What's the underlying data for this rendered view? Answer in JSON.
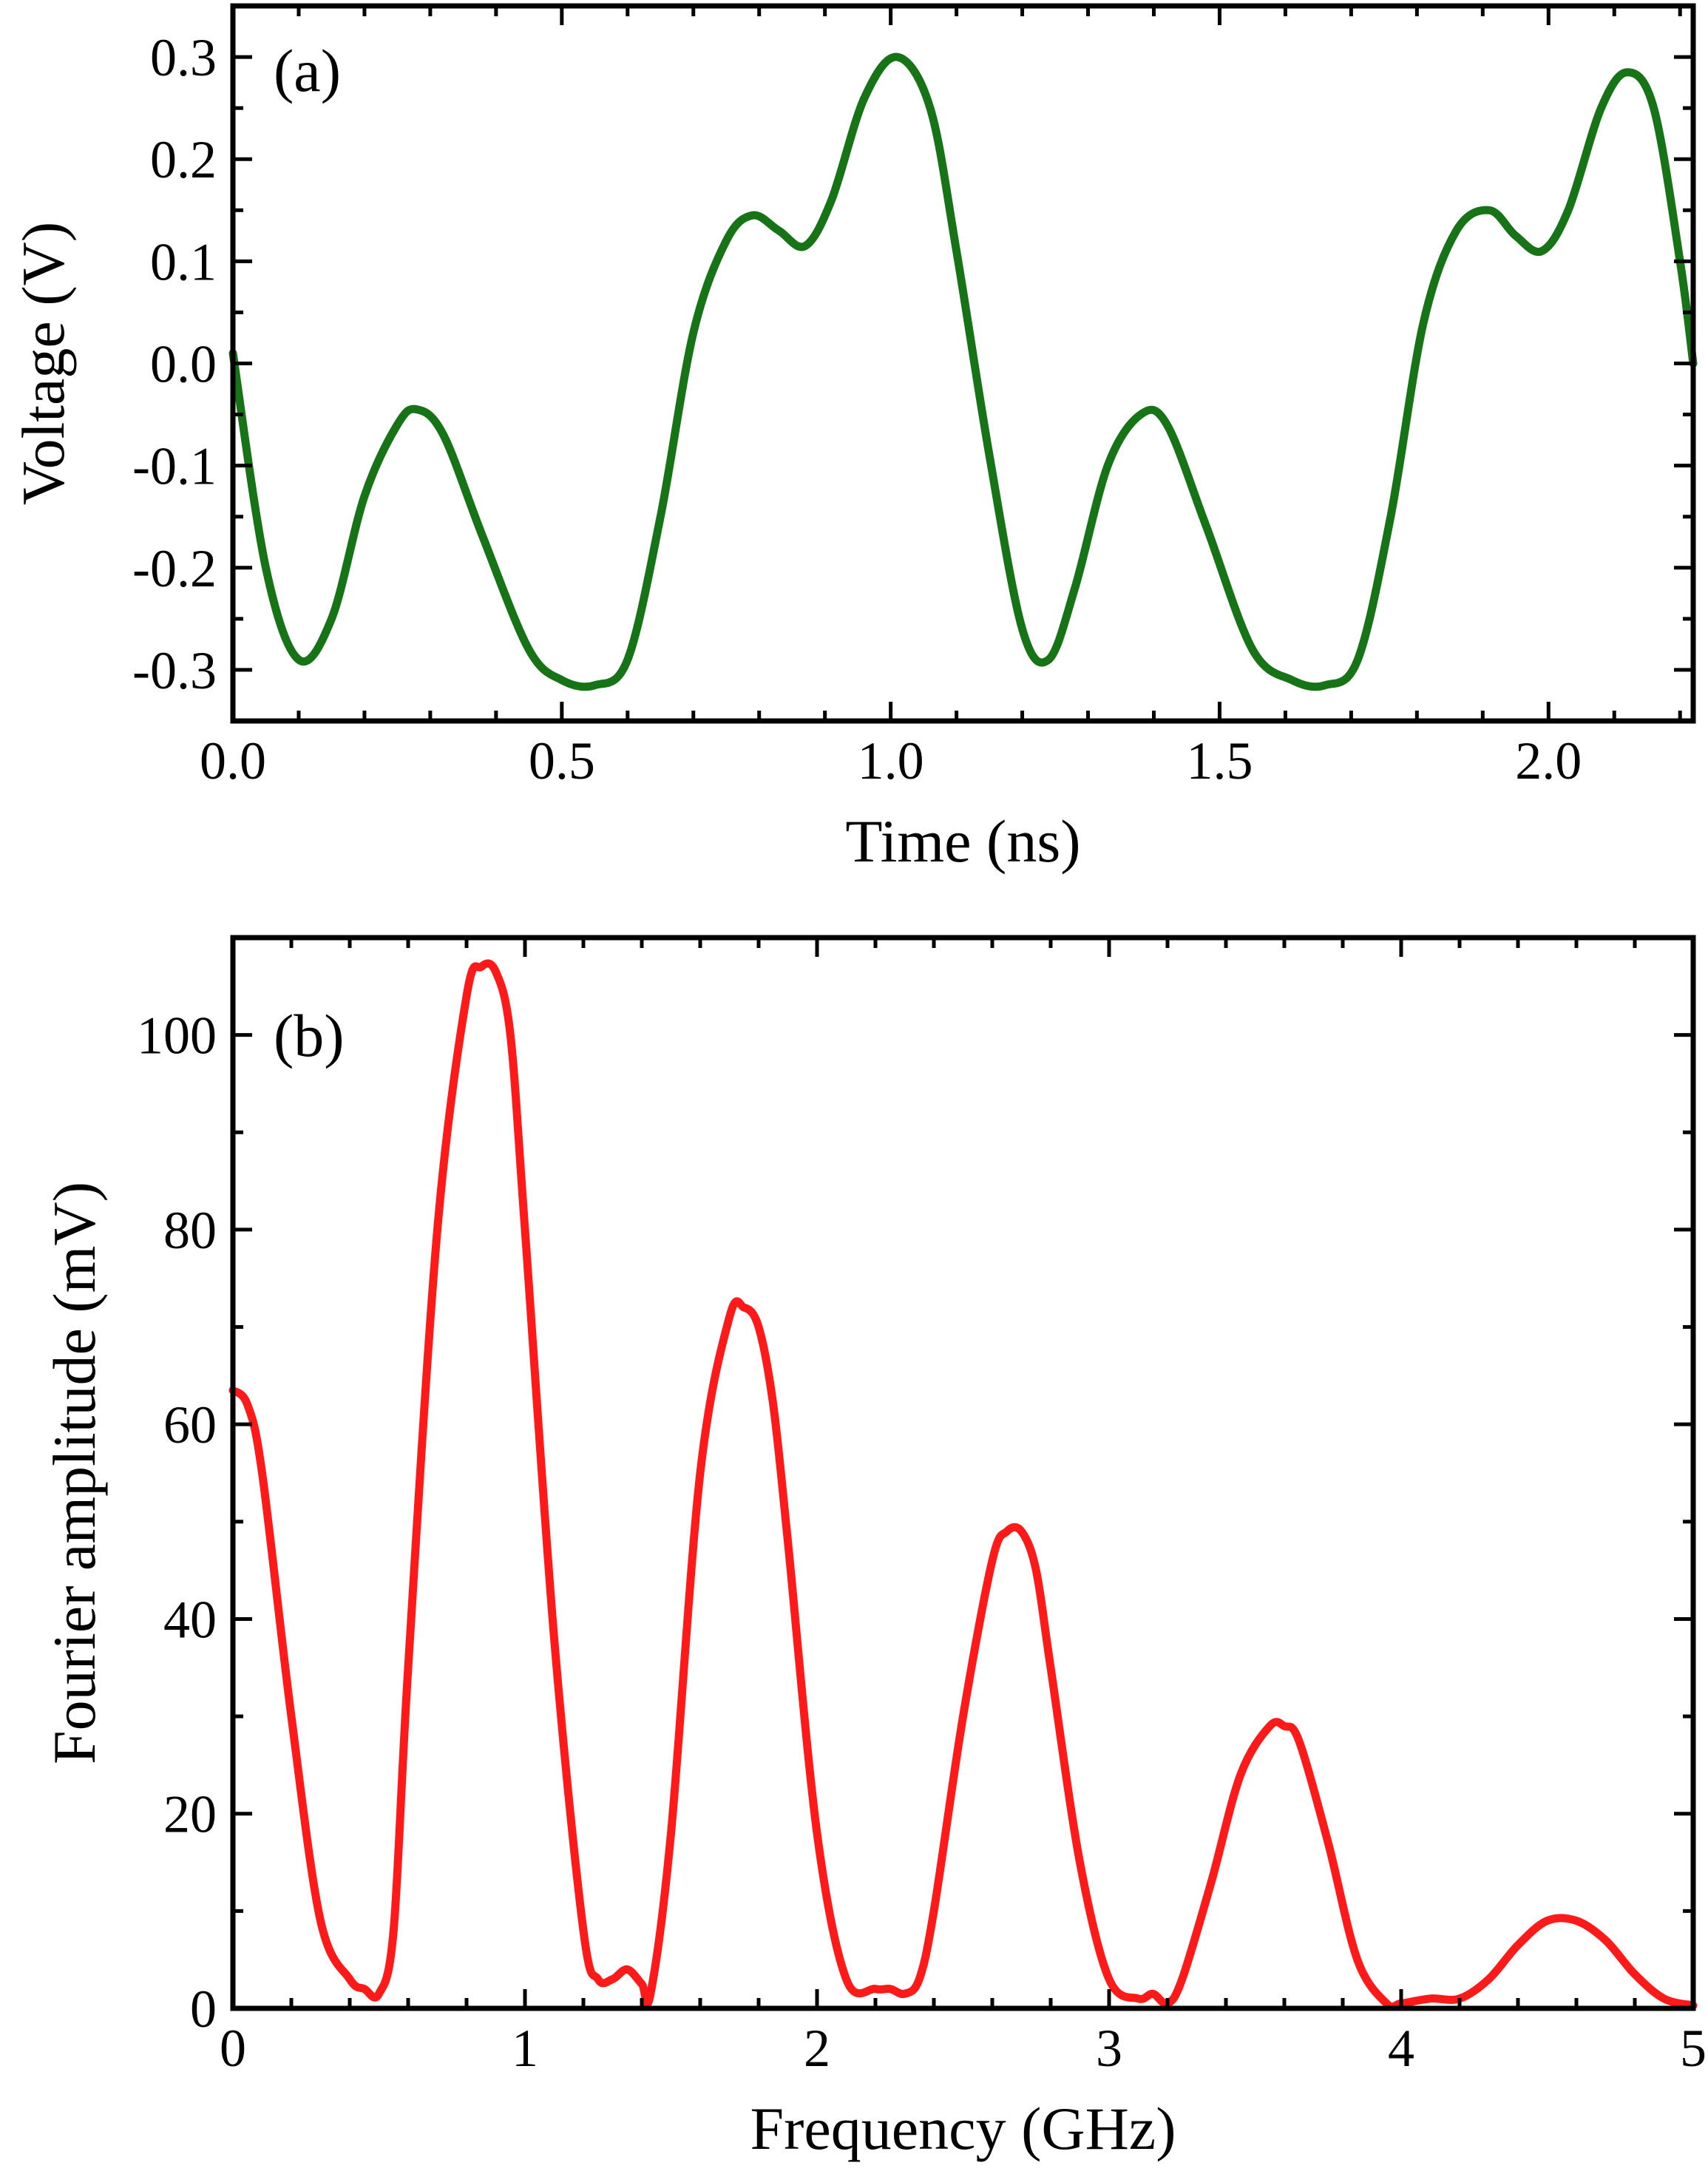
{
  "chart_data": [
    {
      "panel_label": "(a)",
      "type": "line",
      "xlabel": "Time (ns)",
      "ylabel": "Voltage (V)",
      "xlim": [
        0,
        2.22
      ],
      "ylim": [
        -0.35,
        0.35
      ],
      "xticks": [
        0,
        0.5,
        1.0,
        1.5,
        2.0
      ],
      "xtick_labels": [
        "0.0",
        "0.5",
        "1.0",
        "1.5",
        "2.0"
      ],
      "yticks": [
        -0.3,
        -0.2,
        -0.1,
        0.0,
        0.1,
        0.2,
        0.3
      ],
      "ytick_labels": [
        "-0.3",
        "-0.2",
        "-0.1",
        "0.0",
        "0.1",
        "0.2",
        "0.3"
      ],
      "x_minor_step": 0.1,
      "y_minor_step": 0.05,
      "grid": false,
      "series": [
        {
          "color": "#167316",
          "x": [
            0.0,
            0.05,
            0.1,
            0.15,
            0.2,
            0.25,
            0.28,
            0.32,
            0.38,
            0.45,
            0.5,
            0.55,
            0.6,
            0.65,
            0.7,
            0.75,
            0.79,
            0.83,
            0.87,
            0.91,
            0.96,
            1.01,
            1.06,
            1.1,
            1.15,
            1.2,
            1.24,
            1.28,
            1.33,
            1.38,
            1.42,
            1.48,
            1.55,
            1.61,
            1.66,
            1.71,
            1.76,
            1.81,
            1.86,
            1.91,
            1.95,
            1.99,
            2.03,
            2.08,
            2.12,
            2.16,
            2.2,
            2.22
          ],
          "y": [
            0.01,
            -0.2,
            -0.29,
            -0.25,
            -0.13,
            -0.06,
            -0.045,
            -0.07,
            -0.17,
            -0.28,
            -0.31,
            -0.315,
            -0.29,
            -0.15,
            0.03,
            0.12,
            0.145,
            0.13,
            0.115,
            0.16,
            0.26,
            0.3,
            0.25,
            0.11,
            -0.09,
            -0.26,
            -0.29,
            -0.22,
            -0.1,
            -0.05,
            -0.06,
            -0.16,
            -0.28,
            -0.31,
            -0.315,
            -0.29,
            -0.15,
            0.04,
            0.13,
            0.15,
            0.125,
            0.11,
            0.15,
            0.25,
            0.285,
            0.25,
            0.1,
            0.0
          ]
        }
      ]
    },
    {
      "panel_label": "(b)",
      "type": "line",
      "xlabel": "Frequency (GHz)",
      "ylabel": "Fourier amplitude (mV)",
      "xlim": [
        0,
        5
      ],
      "ylim": [
        0,
        110
      ],
      "xticks": [
        0,
        1,
        2,
        3,
        4,
        5
      ],
      "xtick_labels": [
        "0",
        "1",
        "2",
        "3",
        "4",
        "5"
      ],
      "yticks": [
        0,
        20,
        40,
        60,
        80,
        100
      ],
      "ytick_labels": [
        "0",
        "20",
        "40",
        "60",
        "80",
        "100"
      ],
      "x_minor_step": 0.2,
      "y_minor_step": 10,
      "grid": false,
      "series": [
        {
          "color": "#ff1a1a",
          "x": [
            0.0,
            0.05,
            0.1,
            0.2,
            0.3,
            0.4,
            0.45,
            0.5,
            0.55,
            0.6,
            0.7,
            0.8,
            0.85,
            0.9,
            0.95,
            1.0,
            1.1,
            1.2,
            1.25,
            1.3,
            1.35,
            1.4,
            1.43,
            1.5,
            1.6,
            1.7,
            1.75,
            1.8,
            1.85,
            1.9,
            2.0,
            2.1,
            2.2,
            2.25,
            2.3,
            2.35,
            2.4,
            2.5,
            2.6,
            2.65,
            2.7,
            2.75,
            2.8,
            2.9,
            3.0,
            3.1,
            3.15,
            3.2,
            3.25,
            3.35,
            3.45,
            3.55,
            3.6,
            3.65,
            3.75,
            3.85,
            3.95,
            4.0,
            4.1,
            4.2,
            4.3,
            4.4,
            4.5,
            4.6,
            4.7,
            4.8,
            4.9,
            5.0
          ],
          "y": [
            63.5,
            62,
            55,
            30,
            9,
            3,
            2,
            1.5,
            8,
            35,
            80,
            104,
            107,
            106.5,
            100,
            80,
            38,
            8,
            3,
            3,
            4,
            2.5,
            1.5,
            18,
            55,
            71,
            72,
            70,
            62,
            48,
            18,
            3,
            2,
            2,
            1.5,
            3,
            10,
            30,
            46,
            49,
            49,
            45,
            35,
            15,
            3,
            1,
            1.5,
            0.5,
            3,
            13,
            24,
            29,
            29,
            27.5,
            17,
            5,
            0.5,
            0.5,
            1,
            1,
            3,
            6.5,
            9,
            9,
            7,
            3.5,
            1,
            0.3
          ]
        }
      ]
    }
  ]
}
